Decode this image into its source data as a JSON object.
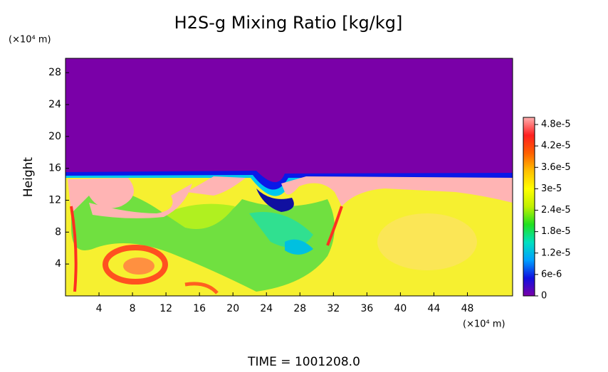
{
  "chart_data": {
    "type": "heatmap",
    "title": "H2S-g Mixing Ratio [kg/kg]",
    "x_unit": "(×10⁴ m)",
    "y_label": "Height",
    "y_unit": "(×10⁴ m)",
    "xlim": [
      0,
      53.4
    ],
    "xticks": [
      4,
      8,
      12,
      16,
      20,
      24,
      28,
      32,
      36,
      40,
      44,
      48
    ],
    "ylim": [
      0,
      29.8
    ],
    "yticks": [
      4,
      8,
      12,
      16,
      20,
      24,
      28
    ],
    "colorbar": {
      "lim": [
        0,
        5e-05
      ],
      "ticks": [
        0,
        {
          "value": 6e-06,
          "label": "6e-6"
        },
        {
          "value": 1.2e-05,
          "label": "1.2e-5"
        },
        {
          "value": 1.8e-05,
          "label": "1.8e-5"
        },
        {
          "value": 2.4e-05,
          "label": "2.4e-5"
        },
        {
          "value": 3e-05,
          "label": "3e-5"
        },
        {
          "value": 3.6e-05,
          "label": "3.6e-5"
        },
        {
          "value": 4.2e-05,
          "label": "4.2e-5"
        },
        {
          "value": 4.8e-05,
          "label": "4.8e-5"
        }
      ],
      "colors": [
        "#7a00a8",
        "#1010e0",
        "#00a0ff",
        "#00e0c0",
        "#20e020",
        "#c0f000",
        "#ffff00",
        "#ffc000",
        "#ff6000",
        "#ff2020",
        "#ffb0b0"
      ]
    },
    "time_label": "TIME = 1001208.0"
  }
}
